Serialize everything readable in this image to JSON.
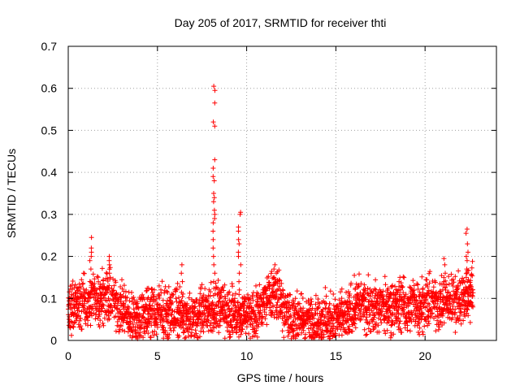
{
  "chart_data": {
    "type": "scatter",
    "title": "Day 205 of 2017, SRMTID for receiver thti",
    "xlabel": "GPS time / hours",
    "ylabel": "SRMTID / TECUs",
    "xlim": [
      0,
      24
    ],
    "ylim": [
      0,
      0.7
    ],
    "xticks": [
      0,
      5,
      10,
      15,
      20
    ],
    "yticks": [
      0,
      0.1,
      0.2,
      0.3,
      0.4,
      0.5,
      0.6,
      0.7
    ],
    "xtick_labels": [
      "0",
      "5",
      "10",
      "15",
      "20"
    ],
    "ytick_labels": [
      "0",
      "0.1",
      "0.2",
      "0.3",
      "0.4",
      "0.5",
      "0.6",
      "0.7"
    ],
    "grid": true,
    "marker": "+",
    "color": "#ff0000",
    "baseline": [
      [
        0.0,
        0.08
      ],
      [
        1.0,
        0.09
      ],
      [
        2.0,
        0.11
      ],
      [
        3.0,
        0.08
      ],
      [
        3.5,
        0.05
      ],
      [
        4.5,
        0.07
      ],
      [
        5.5,
        0.06
      ],
      [
        6.3,
        0.07
      ],
      [
        6.8,
        0.04
      ],
      [
        7.5,
        0.07
      ],
      [
        8.5,
        0.08
      ],
      [
        9.5,
        0.06
      ],
      [
        10.5,
        0.07
      ],
      [
        11.5,
        0.11
      ],
      [
        12.0,
        0.09
      ],
      [
        12.5,
        0.05
      ],
      [
        13.5,
        0.05
      ],
      [
        14.5,
        0.05
      ],
      [
        15.5,
        0.05
      ],
      [
        16.2,
        0.09
      ],
      [
        17.0,
        0.08
      ],
      [
        18.0,
        0.08
      ],
      [
        19.0,
        0.08
      ],
      [
        20.0,
        0.09
      ],
      [
        21.0,
        0.09
      ],
      [
        22.0,
        0.1
      ],
      [
        22.7,
        0.12
      ]
    ],
    "spikes": [
      {
        "x": 8.15,
        "ys": [
          0.605,
          0.595,
          0.565,
          0.52,
          0.51,
          0.43,
          0.41,
          0.39,
          0.38,
          0.35,
          0.34,
          0.33,
          0.31,
          0.3,
          0.29,
          0.28,
          0.26,
          0.24,
          0.22,
          0.2,
          0.18,
          0.16,
          0.14
        ]
      },
      {
        "x": 9.6,
        "ys": [
          0.305,
          0.3,
          0.27,
          0.26,
          0.24,
          0.23,
          0.21,
          0.2,
          0.18,
          0.16,
          0.14,
          0.12
        ]
      },
      {
        "x": 1.25,
        "ys": [
          0.245,
          0.22,
          0.21,
          0.2,
          0.19,
          0.17
        ]
      },
      {
        "x": 2.3,
        "ys": [
          0.2,
          0.19,
          0.18,
          0.16,
          0.15
        ]
      },
      {
        "x": 11.6,
        "ys": [
          0.18,
          0.17,
          0.16,
          0.15
        ]
      },
      {
        "x": 22.35,
        "ys": [
          0.265,
          0.255,
          0.23,
          0.21,
          0.2,
          0.19,
          0.17,
          0.15
        ]
      },
      {
        "x": 21.1,
        "ys": [
          0.195,
          0.18,
          0.16,
          0.14
        ]
      },
      {
        "x": 6.4,
        "ys": [
          0.18,
          0.16,
          0.14
        ]
      },
      {
        "x": 18.6,
        "ys": [
          0.15,
          0.14,
          0.13
        ]
      }
    ]
  }
}
